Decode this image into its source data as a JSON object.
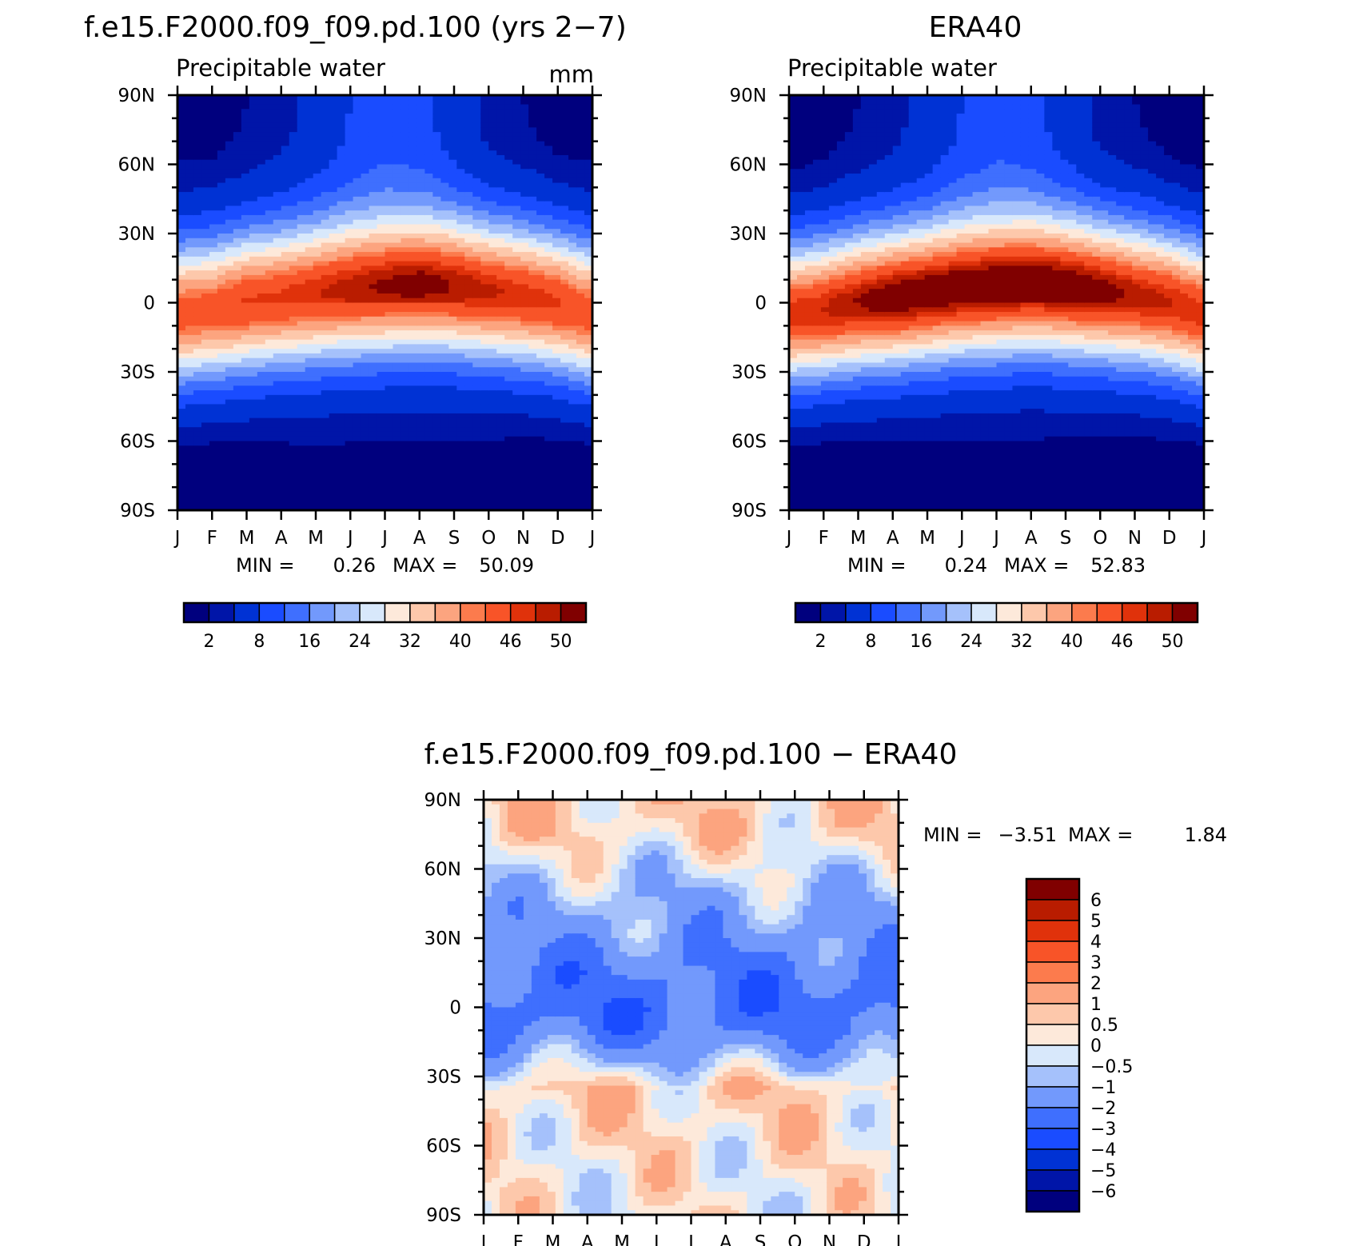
{
  "figure": {
    "left_title": "f.e15.F2000.f09_f09.pd.100 (yrs 2−7)",
    "right_title": "ERA40",
    "diff_title": "f.e15.F2000.f09_f09.pd.100 − ERA40"
  },
  "palette_abs": [
    "#00007e",
    "#0015a8",
    "#0032d4",
    "#1a4cff",
    "#3f6ffe",
    "#7299fc",
    "#a5c1fb",
    "#d8e8fb",
    "#fde9da",
    "#fdc8ab",
    "#fca47f",
    "#fc7b4d",
    "#f85428",
    "#e0320b",
    "#b91c00",
    "#800000"
  ],
  "palette_diff": [
    "#00007e",
    "#0015a8",
    "#0032d4",
    "#1a4cff",
    "#3f6ffe",
    "#7299fc",
    "#a5c1fb",
    "#d8e8fb",
    "#fde9da",
    "#fdc8ab",
    "#fca47f",
    "#fc7b4d",
    "#f85428",
    "#e0320b",
    "#b91c00",
    "#800000"
  ],
  "chart_data": [
    {
      "type": "heatmap",
      "panel": "model",
      "title": "f.e15.F2000.f09_f09.pd.100 (yrs 2−7)",
      "left_label": "Precipitable water",
      "units": "mm",
      "x_ticks": [
        "J",
        "F",
        "M",
        "A",
        "M",
        "J",
        "J",
        "A",
        "S",
        "O",
        "N",
        "D",
        "J"
      ],
      "y_ticks": [
        "90N",
        "60N",
        "30N",
        "0",
        "30S",
        "60S",
        "90S"
      ],
      "min_label": "MIN =",
      "min_value": "0.26",
      "max_label": "MAX =",
      "max_value": "50.09",
      "colorbar_labels": [
        "2",
        "8",
        "16",
        "24",
        "32",
        "40",
        "46",
        "50"
      ],
      "equator_peak": [
        44,
        44,
        46,
        46,
        47,
        48,
        49,
        50,
        49,
        48,
        47,
        46,
        44
      ],
      "itcz_lat": [
        -5,
        -3,
        0,
        2,
        4,
        6,
        7,
        8,
        7,
        5,
        3,
        0,
        -5
      ],
      "north_pole": [
        1,
        1,
        2,
        3,
        5,
        8,
        10,
        9,
        6,
        3,
        2,
        1,
        1
      ],
      "south_pole": [
        0.3,
        0.4,
        0.6,
        0.8,
        1,
        1,
        1,
        1,
        1,
        0.8,
        0.6,
        0.4,
        0.3
      ]
    },
    {
      "type": "heatmap",
      "panel": "obs",
      "title": "ERA40",
      "left_label": "Precipitable water",
      "x_ticks": [
        "J",
        "F",
        "M",
        "A",
        "M",
        "J",
        "J",
        "A",
        "S",
        "O",
        "N",
        "D",
        "J"
      ],
      "y_ticks": [
        "90N",
        "60N",
        "30N",
        "0",
        "30S",
        "60S",
        "90S"
      ],
      "min_label": "MIN =",
      "min_value": "0.24",
      "max_label": "MAX =",
      "max_value": "52.83",
      "colorbar_labels": [
        "2",
        "8",
        "16",
        "24",
        "32",
        "40",
        "46",
        "50"
      ],
      "equator_peak": [
        47,
        48,
        50,
        52,
        52,
        52,
        52,
        52,
        52,
        51,
        49,
        48,
        47
      ],
      "itcz_lat": [
        -5,
        -3,
        0,
        2,
        4,
        6,
        7,
        8,
        7,
        5,
        3,
        0,
        -5
      ],
      "north_pole": [
        0.5,
        1,
        2,
        3,
        5,
        8,
        10,
        9,
        6,
        3,
        2,
        1,
        0.5
      ],
      "south_pole": [
        0.2,
        0.3,
        0.5,
        0.7,
        0.8,
        0.9,
        0.9,
        0.9,
        0.8,
        0.7,
        0.5,
        0.4,
        0.2
      ]
    },
    {
      "type": "heatmap",
      "panel": "difference",
      "title": "f.e15.F2000.f09_f09.pd.100 − ERA40",
      "x_ticks": [
        "J",
        "F",
        "M",
        "A",
        "M",
        "J",
        "J",
        "A",
        "S",
        "O",
        "N",
        "D",
        "J"
      ],
      "y_ticks": [
        "90N",
        "60N",
        "30N",
        "0",
        "30S",
        "60S",
        "90S"
      ],
      "min_label": "MIN =",
      "min_value": "−3.51",
      "max_label": "MAX =",
      "max_value": "1.84",
      "colorbar_labels": [
        "6",
        "5",
        "4",
        "3",
        "2",
        "1",
        "0.5",
        "0",
        "−0.5",
        "−1",
        "−2",
        "−3",
        "−4",
        "−5",
        "−6"
      ],
      "levels": [
        -6,
        -5,
        -4,
        -3,
        -2,
        -1,
        -0.5,
        0,
        0.5,
        1,
        2,
        3,
        4,
        5,
        6
      ],
      "lat_profile": [
        {
          "lat": 90,
          "value": 0.6
        },
        {
          "lat": 75,
          "value": 0.5
        },
        {
          "lat": 60,
          "value": -0.3
        },
        {
          "lat": 45,
          "value": -1.0
        },
        {
          "lat": 30,
          "value": -1.5
        },
        {
          "lat": 15,
          "value": -2.2
        },
        {
          "lat": 0,
          "value": -2.6
        },
        {
          "lat": -10,
          "value": -2.2
        },
        {
          "lat": -25,
          "value": -0.6
        },
        {
          "lat": -35,
          "value": 0.6
        },
        {
          "lat": -50,
          "value": 0.4
        },
        {
          "lat": -70,
          "value": 0.2
        },
        {
          "lat": -90,
          "value": 0.1
        }
      ]
    }
  ]
}
